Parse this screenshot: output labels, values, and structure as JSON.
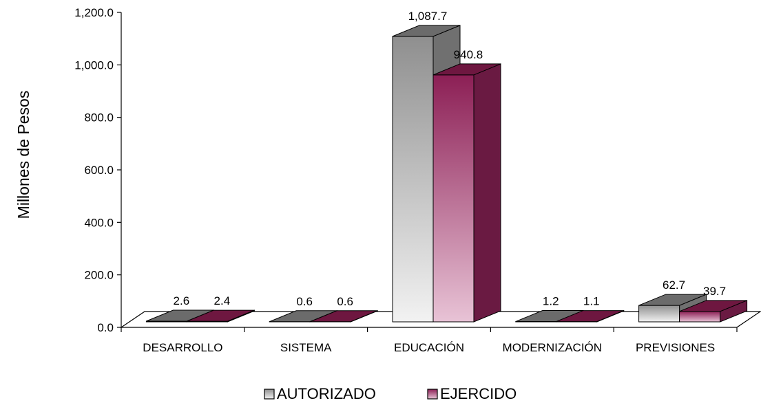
{
  "chart_data": {
    "type": "bar",
    "categories": [
      "DESARROLLO",
      "SISTEMA",
      "EDUCACIÓN",
      "MODERNIZACIÓN",
      "PREVISIONES"
    ],
    "series": [
      {
        "name": "AUTORIZADO",
        "values": [
          2.6,
          0.6,
          1087.7,
          1.2,
          62.7
        ],
        "labels": [
          "2.6",
          "0.6",
          "1,087.7",
          "1.2",
          "62.7"
        ],
        "color": "#9a9a9a"
      },
      {
        "name": "EJERCIDO",
        "values": [
          2.4,
          0.6,
          940.8,
          1.1,
          39.7
        ],
        "labels": [
          "2.4",
          "0.6",
          "940.8",
          "1.1",
          "39.7"
        ],
        "color": "#8e2456"
      }
    ],
    "ylabel": "Millones de Pesos",
    "ylim": [
      0,
      1200
    ],
    "yticks": [
      "0.0",
      "200.0",
      "400.0",
      "600.0",
      "800.0",
      "1,000.0",
      "1,200.0"
    ],
    "grid": false,
    "style": "3d-clustered-bar",
    "legend_position": "bottom"
  }
}
